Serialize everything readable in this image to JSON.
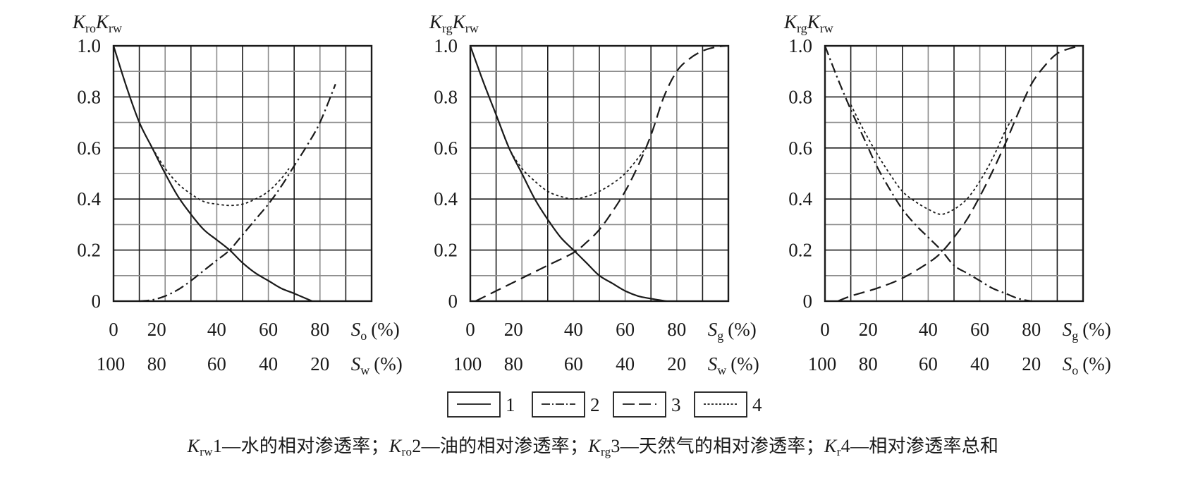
{
  "figure": {
    "legend": [
      {
        "id": "1",
        "label": "1",
        "style": "solid"
      },
      {
        "id": "2",
        "label": "2",
        "style": "dashdot"
      },
      {
        "id": "3",
        "label": "3",
        "style": "dash"
      },
      {
        "id": "4",
        "label": "4",
        "style": "dot"
      }
    ],
    "caption": [
      {
        "sym": "K",
        "sub": "rw",
        "text": "1—水的相对渗透率；"
      },
      {
        "sym": "K",
        "sub": "ro",
        "text": "2—油的相对渗透率；"
      },
      {
        "sym": "K",
        "sub": "rg",
        "text": "3—天然气的相对渗透率；"
      },
      {
        "sym": "K",
        "sub": "r",
        "text": "4—相对渗透率总和"
      }
    ],
    "colors": {
      "line": "#1a1a1a",
      "grid_major": "#1a1a1a",
      "grid_minor": "#8c8c8c",
      "frame": "#1a1a1a"
    }
  },
  "chart_data": [
    {
      "type": "line",
      "title": "",
      "ylabel": {
        "parts": [
          {
            "sym": "K",
            "sub": "ro"
          },
          {
            "sym": "K",
            "sub": "rw"
          }
        ]
      },
      "xlabel_primary": {
        "sym": "S",
        "sub": "o",
        "unit": "(%)"
      },
      "xlabel_secondary": {
        "sym": "S",
        "sub": "w",
        "unit": "(%)"
      },
      "x_ticks_primary": [
        "0",
        "20",
        "40",
        "60",
        "80"
      ],
      "x_ticks_secondary": [
        "100",
        "80",
        "60",
        "40",
        "20"
      ],
      "y_ticks": [
        "0",
        "0.2",
        "0.4",
        "0.6",
        "0.8",
        "1.0"
      ],
      "xlim": [
        0,
        100
      ],
      "ylim": [
        0,
        1.0
      ],
      "grid": true,
      "grid_divisions": [
        10,
        10
      ],
      "series": [
        {
          "name": "Krw",
          "legend": "1",
          "style": "solid",
          "x": [
            0,
            5,
            10,
            15,
            20,
            25,
            30,
            35,
            40,
            45,
            50,
            55,
            60,
            65,
            70,
            77
          ],
          "y": [
            1.0,
            0.84,
            0.7,
            0.6,
            0.5,
            0.41,
            0.34,
            0.28,
            0.24,
            0.2,
            0.15,
            0.11,
            0.08,
            0.05,
            0.03,
            0.0
          ]
        },
        {
          "name": "Kro",
          "legend": "2",
          "style": "dashdot",
          "x": [
            10,
            15,
            20,
            25,
            30,
            35,
            40,
            45,
            50,
            55,
            60,
            65,
            70,
            75,
            80,
            86
          ],
          "y": [
            0.0,
            0.005,
            0.02,
            0.045,
            0.08,
            0.12,
            0.16,
            0.2,
            0.26,
            0.32,
            0.38,
            0.45,
            0.53,
            0.61,
            0.7,
            0.85
          ]
        },
        {
          "name": "Kr",
          "legend": "4",
          "style": "dot",
          "x": [
            15,
            20,
            25,
            30,
            35,
            40,
            45,
            50,
            55,
            60,
            65,
            68
          ],
          "y": [
            0.6,
            0.52,
            0.46,
            0.42,
            0.39,
            0.38,
            0.375,
            0.38,
            0.4,
            0.43,
            0.48,
            0.52
          ]
        }
      ]
    },
    {
      "type": "line",
      "title": "",
      "ylabel": {
        "parts": [
          {
            "sym": "K",
            "sub": "rg"
          },
          {
            "sym": "K",
            "sub": "rw"
          }
        ]
      },
      "xlabel_primary": {
        "sym": "S",
        "sub": "g",
        "unit": "(%)"
      },
      "xlabel_secondary": {
        "sym": "S",
        "sub": "w",
        "unit": "(%)"
      },
      "x_ticks_primary": [
        "0",
        "20",
        "40",
        "60",
        "80"
      ],
      "x_ticks_secondary": [
        "100",
        "80",
        "60",
        "40",
        "20"
      ],
      "y_ticks": [
        "0",
        "0.2",
        "0.4",
        "0.6",
        "0.8",
        "1.0"
      ],
      "xlim": [
        0,
        100
      ],
      "ylim": [
        0,
        1.0
      ],
      "grid": true,
      "grid_divisions": [
        10,
        10
      ],
      "series": [
        {
          "name": "Krw",
          "legend": "1",
          "style": "solid",
          "x": [
            0,
            5,
            10,
            15,
            20,
            25,
            30,
            35,
            40,
            45,
            50,
            55,
            60,
            65,
            70,
            76
          ],
          "y": [
            1.0,
            0.86,
            0.73,
            0.6,
            0.5,
            0.4,
            0.32,
            0.25,
            0.2,
            0.15,
            0.1,
            0.07,
            0.04,
            0.02,
            0.01,
            0.0
          ]
        },
        {
          "name": "Krg",
          "legend": "3",
          "style": "dash",
          "x": [
            2,
            10,
            20,
            30,
            40,
            45,
            50,
            55,
            60,
            65,
            70,
            75,
            80,
            85,
            90,
            95,
            99
          ],
          "y": [
            0.0,
            0.04,
            0.09,
            0.14,
            0.19,
            0.23,
            0.28,
            0.35,
            0.43,
            0.53,
            0.65,
            0.8,
            0.9,
            0.95,
            0.98,
            0.995,
            1.0
          ]
        },
        {
          "name": "Kr",
          "legend": "4",
          "style": "dot",
          "x": [
            10,
            15,
            20,
            25,
            30,
            35,
            40,
            45,
            50,
            55,
            60,
            65,
            68
          ],
          "y": [
            0.73,
            0.6,
            0.52,
            0.47,
            0.43,
            0.41,
            0.4,
            0.41,
            0.43,
            0.46,
            0.5,
            0.56,
            0.6
          ]
        }
      ]
    },
    {
      "type": "line",
      "title": "",
      "ylabel": {
        "parts": [
          {
            "sym": "K",
            "sub": "rg"
          },
          {
            "sym": "K",
            "sub": "rw"
          }
        ]
      },
      "xlabel_primary": {
        "sym": "S",
        "sub": "g",
        "unit": "(%)"
      },
      "xlabel_secondary": {
        "sym": "S",
        "sub": "o",
        "unit": "(%)"
      },
      "x_ticks_primary": [
        "0",
        "20",
        "40",
        "60",
        "80"
      ],
      "x_ticks_secondary": [
        "100",
        "80",
        "60",
        "40",
        "20"
      ],
      "y_ticks": [
        "0",
        "0.2",
        "0.4",
        "0.6",
        "0.8",
        "1.0"
      ],
      "xlim": [
        0,
        100
      ],
      "ylim": [
        0,
        1.0
      ],
      "grid": true,
      "grid_divisions": [
        10,
        10
      ],
      "series": [
        {
          "name": "Kro",
          "legend": "2",
          "style": "dashdot",
          "x": [
            0,
            5,
            10,
            15,
            20,
            25,
            30,
            35,
            40,
            45,
            50,
            55,
            60,
            65,
            70,
            75,
            80
          ],
          "y": [
            1.0,
            0.87,
            0.75,
            0.64,
            0.53,
            0.44,
            0.36,
            0.3,
            0.25,
            0.2,
            0.14,
            0.11,
            0.08,
            0.05,
            0.03,
            0.01,
            0.0
          ]
        },
        {
          "name": "Krg",
          "legend": "3",
          "style": "dash",
          "x": [
            5,
            10,
            20,
            30,
            40,
            45,
            50,
            55,
            60,
            65,
            70,
            75,
            80,
            85,
            90,
            95,
            99
          ],
          "y": [
            0.0,
            0.02,
            0.05,
            0.09,
            0.15,
            0.19,
            0.25,
            0.32,
            0.41,
            0.51,
            0.62,
            0.74,
            0.85,
            0.92,
            0.97,
            0.99,
            1.0
          ]
        },
        {
          "name": "Kr",
          "legend": "4",
          "style": "dot",
          "x": [
            10,
            15,
            20,
            25,
            30,
            35,
            40,
            45,
            50,
            55,
            60,
            65,
            70,
            73
          ],
          "y": [
            0.77,
            0.67,
            0.58,
            0.5,
            0.43,
            0.39,
            0.36,
            0.34,
            0.36,
            0.4,
            0.47,
            0.56,
            0.67,
            0.72
          ]
        }
      ]
    }
  ]
}
